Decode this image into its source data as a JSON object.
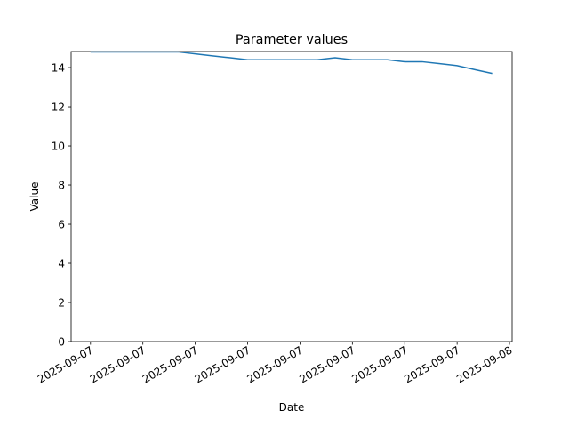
{
  "chart_data": {
    "type": "line",
    "title": "Parameter values",
    "x_label": "Date",
    "y_label": "Value",
    "x": [
      0,
      0.33,
      0.67,
      1,
      1.33,
      1.67,
      2,
      2.33,
      2.67,
      3,
      3.33,
      3.67,
      4,
      4.33,
      4.67,
      5,
      5.33,
      5.67,
      6,
      6.33,
      6.67,
      7,
      7.33,
      7.67
    ],
    "series": [
      {
        "name": "Value",
        "color": "#1f77b4",
        "values": [
          14.8,
          14.8,
          14.8,
          14.8,
          14.8,
          14.8,
          14.7,
          14.6,
          14.5,
          14.4,
          14.4,
          14.4,
          14.4,
          14.4,
          14.5,
          14.4,
          14.4,
          14.4,
          14.3,
          14.3,
          14.2,
          14.1,
          13.9,
          13.7
        ]
      }
    ],
    "xlim": [
      -0.37,
      8.05
    ],
    "xticks": [
      {
        "value": 0,
        "label": "2025-09-07"
      },
      {
        "value": 1,
        "label": "2025-09-07"
      },
      {
        "value": 2,
        "label": "2025-09-07"
      },
      {
        "value": 3,
        "label": "2025-09-07"
      },
      {
        "value": 4,
        "label": "2025-09-07"
      },
      {
        "value": 5,
        "label": "2025-09-07"
      },
      {
        "value": 6,
        "label": "2025-09-07"
      },
      {
        "value": 7,
        "label": "2025-09-07"
      },
      {
        "value": 8,
        "label": "2025-09-08"
      }
    ],
    "ylim": [
      0,
      14.82
    ],
    "yticks": [
      0,
      2,
      4,
      6,
      8,
      10,
      12,
      14
    ],
    "grid": false
  }
}
